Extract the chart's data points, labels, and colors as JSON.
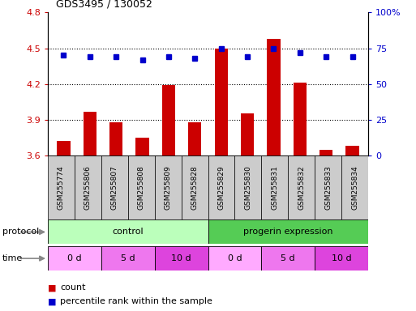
{
  "title": "GDS3495 / 130052",
  "samples": [
    "GSM255774",
    "GSM255806",
    "GSM255807",
    "GSM255808",
    "GSM255809",
    "GSM255828",
    "GSM255829",
    "GSM255830",
    "GSM255831",
    "GSM255832",
    "GSM255833",
    "GSM255834"
  ],
  "counts": [
    3.72,
    3.97,
    3.88,
    3.75,
    4.19,
    3.88,
    4.5,
    3.95,
    4.58,
    4.21,
    3.65,
    3.68
  ],
  "percentiles": [
    70,
    69,
    69,
    67,
    69,
    68,
    75,
    69,
    75,
    72,
    69,
    69
  ],
  "ylim_left": [
    3.6,
    4.8
  ],
  "ylim_right": [
    0,
    100
  ],
  "yticks_left": [
    3.6,
    3.9,
    4.2,
    4.5,
    4.8
  ],
  "yticks_right": [
    0,
    25,
    50,
    75,
    100
  ],
  "bar_color": "#cc0000",
  "dot_color": "#0000cc",
  "bar_width": 0.5,
  "protocol_groups": [
    {
      "label": "control",
      "start": 0,
      "end": 6,
      "color": "#bbffbb"
    },
    {
      "label": "progerin expression",
      "start": 6,
      "end": 12,
      "color": "#55cc55"
    }
  ],
  "time_groups": [
    {
      "label": "0 d",
      "start": 0,
      "end": 2,
      "color": "#ffaaff"
    },
    {
      "label": "5 d",
      "start": 2,
      "end": 4,
      "color": "#ee77ee"
    },
    {
      "label": "10 d",
      "start": 4,
      "end": 6,
      "color": "#dd44dd"
    },
    {
      "label": "0 d",
      "start": 6,
      "end": 8,
      "color": "#ffaaff"
    },
    {
      "label": "5 d",
      "start": 8,
      "end": 10,
      "color": "#ee77ee"
    },
    {
      "label": "10 d",
      "start": 10,
      "end": 12,
      "color": "#dd44dd"
    }
  ],
  "legend_items": [
    {
      "label": "count",
      "color": "#cc0000"
    },
    {
      "label": "percentile rank within the sample",
      "color": "#0000cc"
    }
  ],
  "tick_label_color_left": "#cc0000",
  "tick_label_color_right": "#0000cc",
  "bg_color": "#ffffff",
  "xlabels_bg": "#cccccc",
  "arrow_color": "#888888"
}
